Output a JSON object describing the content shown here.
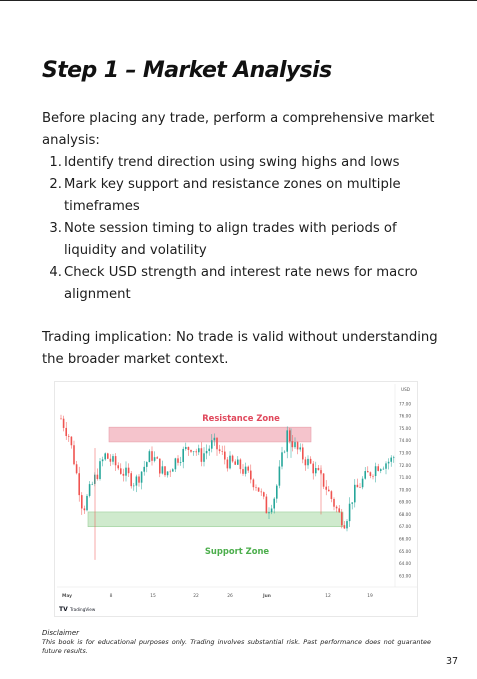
{
  "page": {
    "title": "Step 1 – Market Analysis",
    "intro": "Before placing any trade, perform a comprehensive market analysis:",
    "steps": [
      {
        "num": "1.",
        "text": "Identify trend direction using swing highs and lows"
      },
      {
        "num": "2.",
        "text": "Mark key support and resistance zones on multiple timeframes"
      },
      {
        "num": "3.",
        "text": "Note session timing to align trades with periods of liquidity and volatility"
      },
      {
        "num": "4.",
        "text": "Check USD strength and interest rate news for macro alignment"
      }
    ],
    "implication": "Trading implication: No trade is valid without understanding the broader market context.",
    "disclaimer_title": "Disclaimer",
    "disclaimer_text": "This book is for educational purposes only. Trading involves substantial risk. Past performance does not guarantee future results.",
    "page_number": "37"
  },
  "chart_data": {
    "type": "candlestick",
    "currency": "USD",
    "y_ticks": [
      "77.00",
      "76.00",
      "75.00",
      "74.00",
      "73.00",
      "72.00",
      "71.00",
      "70.00",
      "69.00",
      "68.00",
      "67.00",
      "66.00",
      "65.00",
      "64.00",
      "63.00"
    ],
    "ylim": [
      62.5,
      77.8
    ],
    "x_ticks": [
      "May",
      "8",
      "15",
      "22",
      "26",
      "Jun",
      "12",
      "19"
    ],
    "resistance_zone": {
      "label": "Resistance Zone",
      "from": 73.9,
      "to": 75.1,
      "color": "#f5c4cc",
      "label_color": "#e0485c"
    },
    "support_zone": {
      "label": "Support Zone",
      "from": 67.0,
      "to": 68.2,
      "color": "#cfeacd",
      "label_color": "#4cae4c"
    },
    "up_color": "#26a69a",
    "down_color": "#ef5350",
    "brand": "TradingView"
  }
}
